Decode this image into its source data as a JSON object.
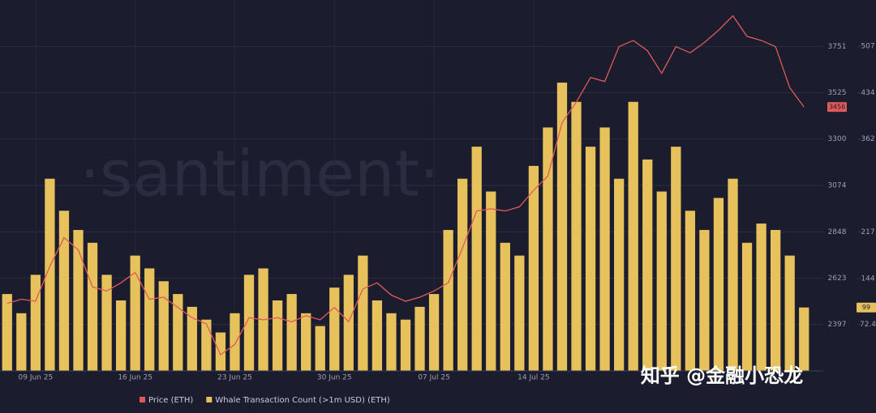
{
  "chart_data": {
    "type": "bar",
    "watermark": "·santiment·",
    "overlay_text": "知乎 @金融小恐龙",
    "categories": [
      null,
      null,
      "09 Jun 25",
      null,
      null,
      null,
      null,
      null,
      null,
      "16 Jun 25",
      null,
      null,
      null,
      null,
      null,
      null,
      "23 Jun 25",
      null,
      null,
      null,
      null,
      null,
      null,
      "30 Jun 25",
      null,
      null,
      null,
      null,
      null,
      null,
      "07 Jul 25",
      null,
      null,
      null,
      null,
      null,
      null,
      "14 Jul 25",
      null,
      null,
      null,
      null,
      null,
      null,
      null,
      null,
      null,
      null,
      null,
      null,
      null,
      null,
      null,
      null,
      null,
      null,
      null
    ],
    "series": [
      {
        "name": "Price (ETH)",
        "type": "line",
        "axis": "y2",
        "color": "#e05a5a",
        "values": [
          2500,
          2520,
          2510,
          2680,
          2820,
          2760,
          2580,
          2560,
          2600,
          2650,
          2520,
          2530,
          2480,
          2430,
          2400,
          2250,
          2300,
          2430,
          2420,
          2430,
          2410,
          2440,
          2420,
          2480,
          2410,
          2570,
          2600,
          2540,
          2510,
          2530,
          2560,
          2600,
          2770,
          2950,
          2960,
          2950,
          2970,
          3050,
          3120,
          3380,
          3480,
          3600,
          3580,
          3750,
          3780,
          3730,
          3620,
          3750,
          3720,
          3770,
          3830,
          3900,
          3800,
          3780,
          3750,
          3550,
          3456
        ]
      },
      {
        "name": "Whale Transaction Count (>1m USD) (ETH)",
        "type": "bar",
        "color": "#e6c15c",
        "values": [
          120,
          90,
          150,
          300,
          250,
          220,
          200,
          150,
          110,
          180,
          160,
          140,
          120,
          100,
          80,
          60,
          90,
          150,
          160,
          110,
          120,
          90,
          70,
          130,
          150,
          180,
          110,
          90,
          80,
          100,
          120,
          220,
          300,
          350,
          280,
          200,
          180,
          320,
          380,
          450,
          420,
          350,
          380,
          300,
          420,
          330,
          280,
          350,
          250,
          220,
          270,
          300,
          200,
          230,
          220,
          180,
          99
        ]
      }
    ],
    "ylim": [
      0,
      579
    ],
    "yticks": [
      72.4,
      144,
      217,
      362,
      434,
      507
    ],
    "y2lim": [
      2171,
      3977
    ],
    "y2ticks": [
      2397,
      2623,
      2848,
      3074,
      3300,
      3525,
      3751
    ],
    "grid": true
  }
}
